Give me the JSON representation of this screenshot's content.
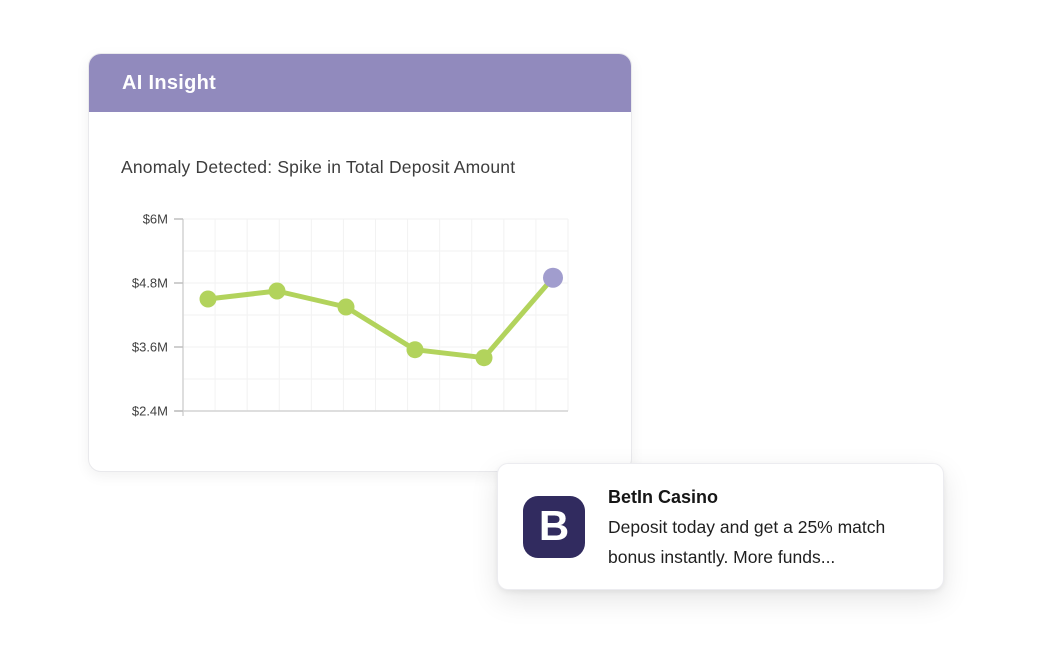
{
  "insight_card": {
    "header": "AI Insight",
    "title": "Anomaly Detected: Spike in Total Deposit Amount"
  },
  "chart_data": {
    "type": "line",
    "title": "Anomaly Detected: Spike in Total Deposit Amount",
    "xlabel": "",
    "ylabel": "",
    "x": [
      1,
      2,
      3,
      4,
      5,
      6
    ],
    "values": [
      4.5,
      4.65,
      4.35,
      3.55,
      3.4,
      4.9
    ],
    "unit": "$M",
    "ylim": [
      2.4,
      6
    ],
    "y_tick_values": [
      6,
      4.8,
      3.6,
      2.4
    ],
    "y_tick_labels": [
      "$6M",
      "$4.8M",
      "$3.6M",
      "$2.4M"
    ],
    "grid": true,
    "legend": false,
    "line_color": "#b2d35c",
    "point_color": "#b2d35c",
    "anomaly_index": 5,
    "anomaly_color": "#a19dce",
    "grid_color": "#f2f2f2",
    "axis_color": "#d4d4d4",
    "tick_label_color": "#414141"
  },
  "toast": {
    "icon_letter": "B",
    "icon_bg": "#312b5f",
    "title": "BetIn Casino",
    "message": "Deposit today and get a 25% match bonus instantly. More funds..."
  },
  "colors": {
    "header_bg": "#918abd",
    "header_text": "#ffffff",
    "card_title_text": "#3d3d3d",
    "page_bg": "#ffffff"
  }
}
